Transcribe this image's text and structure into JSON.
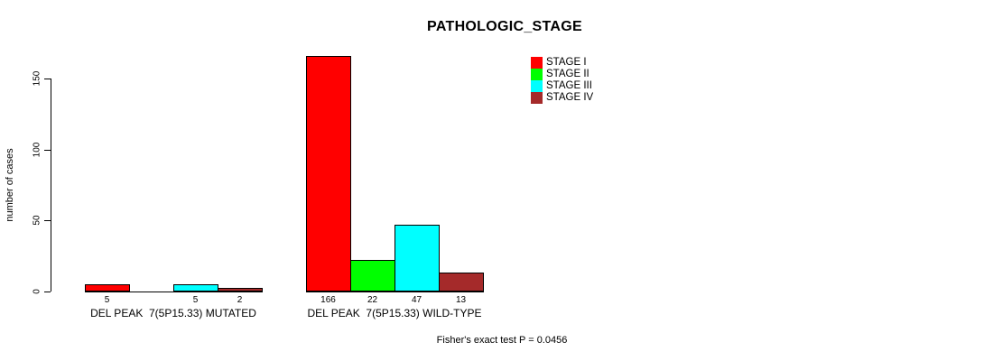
{
  "chart_data": {
    "type": "bar",
    "title": "PATHOLOGIC_STAGE",
    "xlabel": "",
    "ylabel": "number of cases",
    "yticks": [
      0,
      50,
      100,
      150
    ],
    "ylim": [
      0,
      166
    ],
    "grid": false,
    "legend_position": "top-right",
    "categories": [
      "DEL PEAK  7(5P15.33) MUTATED",
      "DEL PEAK  7(5P15.33) WILD-TYPE"
    ],
    "series": [
      {
        "name": "STAGE I",
        "color": "#FF0000",
        "values": [
          5,
          166
        ]
      },
      {
        "name": "STAGE II",
        "color": "#00FF00",
        "values": [
          0,
          22
        ]
      },
      {
        "name": "STAGE III",
        "color": "#00FFFF",
        "values": [
          5,
          47
        ]
      },
      {
        "name": "STAGE IV",
        "color": "#A52A2A",
        "values": [
          2,
          13
        ]
      }
    ],
    "bar_labels": [
      [
        "5",
        "",
        "5",
        "2"
      ],
      [
        "166",
        "22",
        "47",
        "13"
      ]
    ],
    "annotation": "Fisher's exact test P = 0.0456"
  }
}
